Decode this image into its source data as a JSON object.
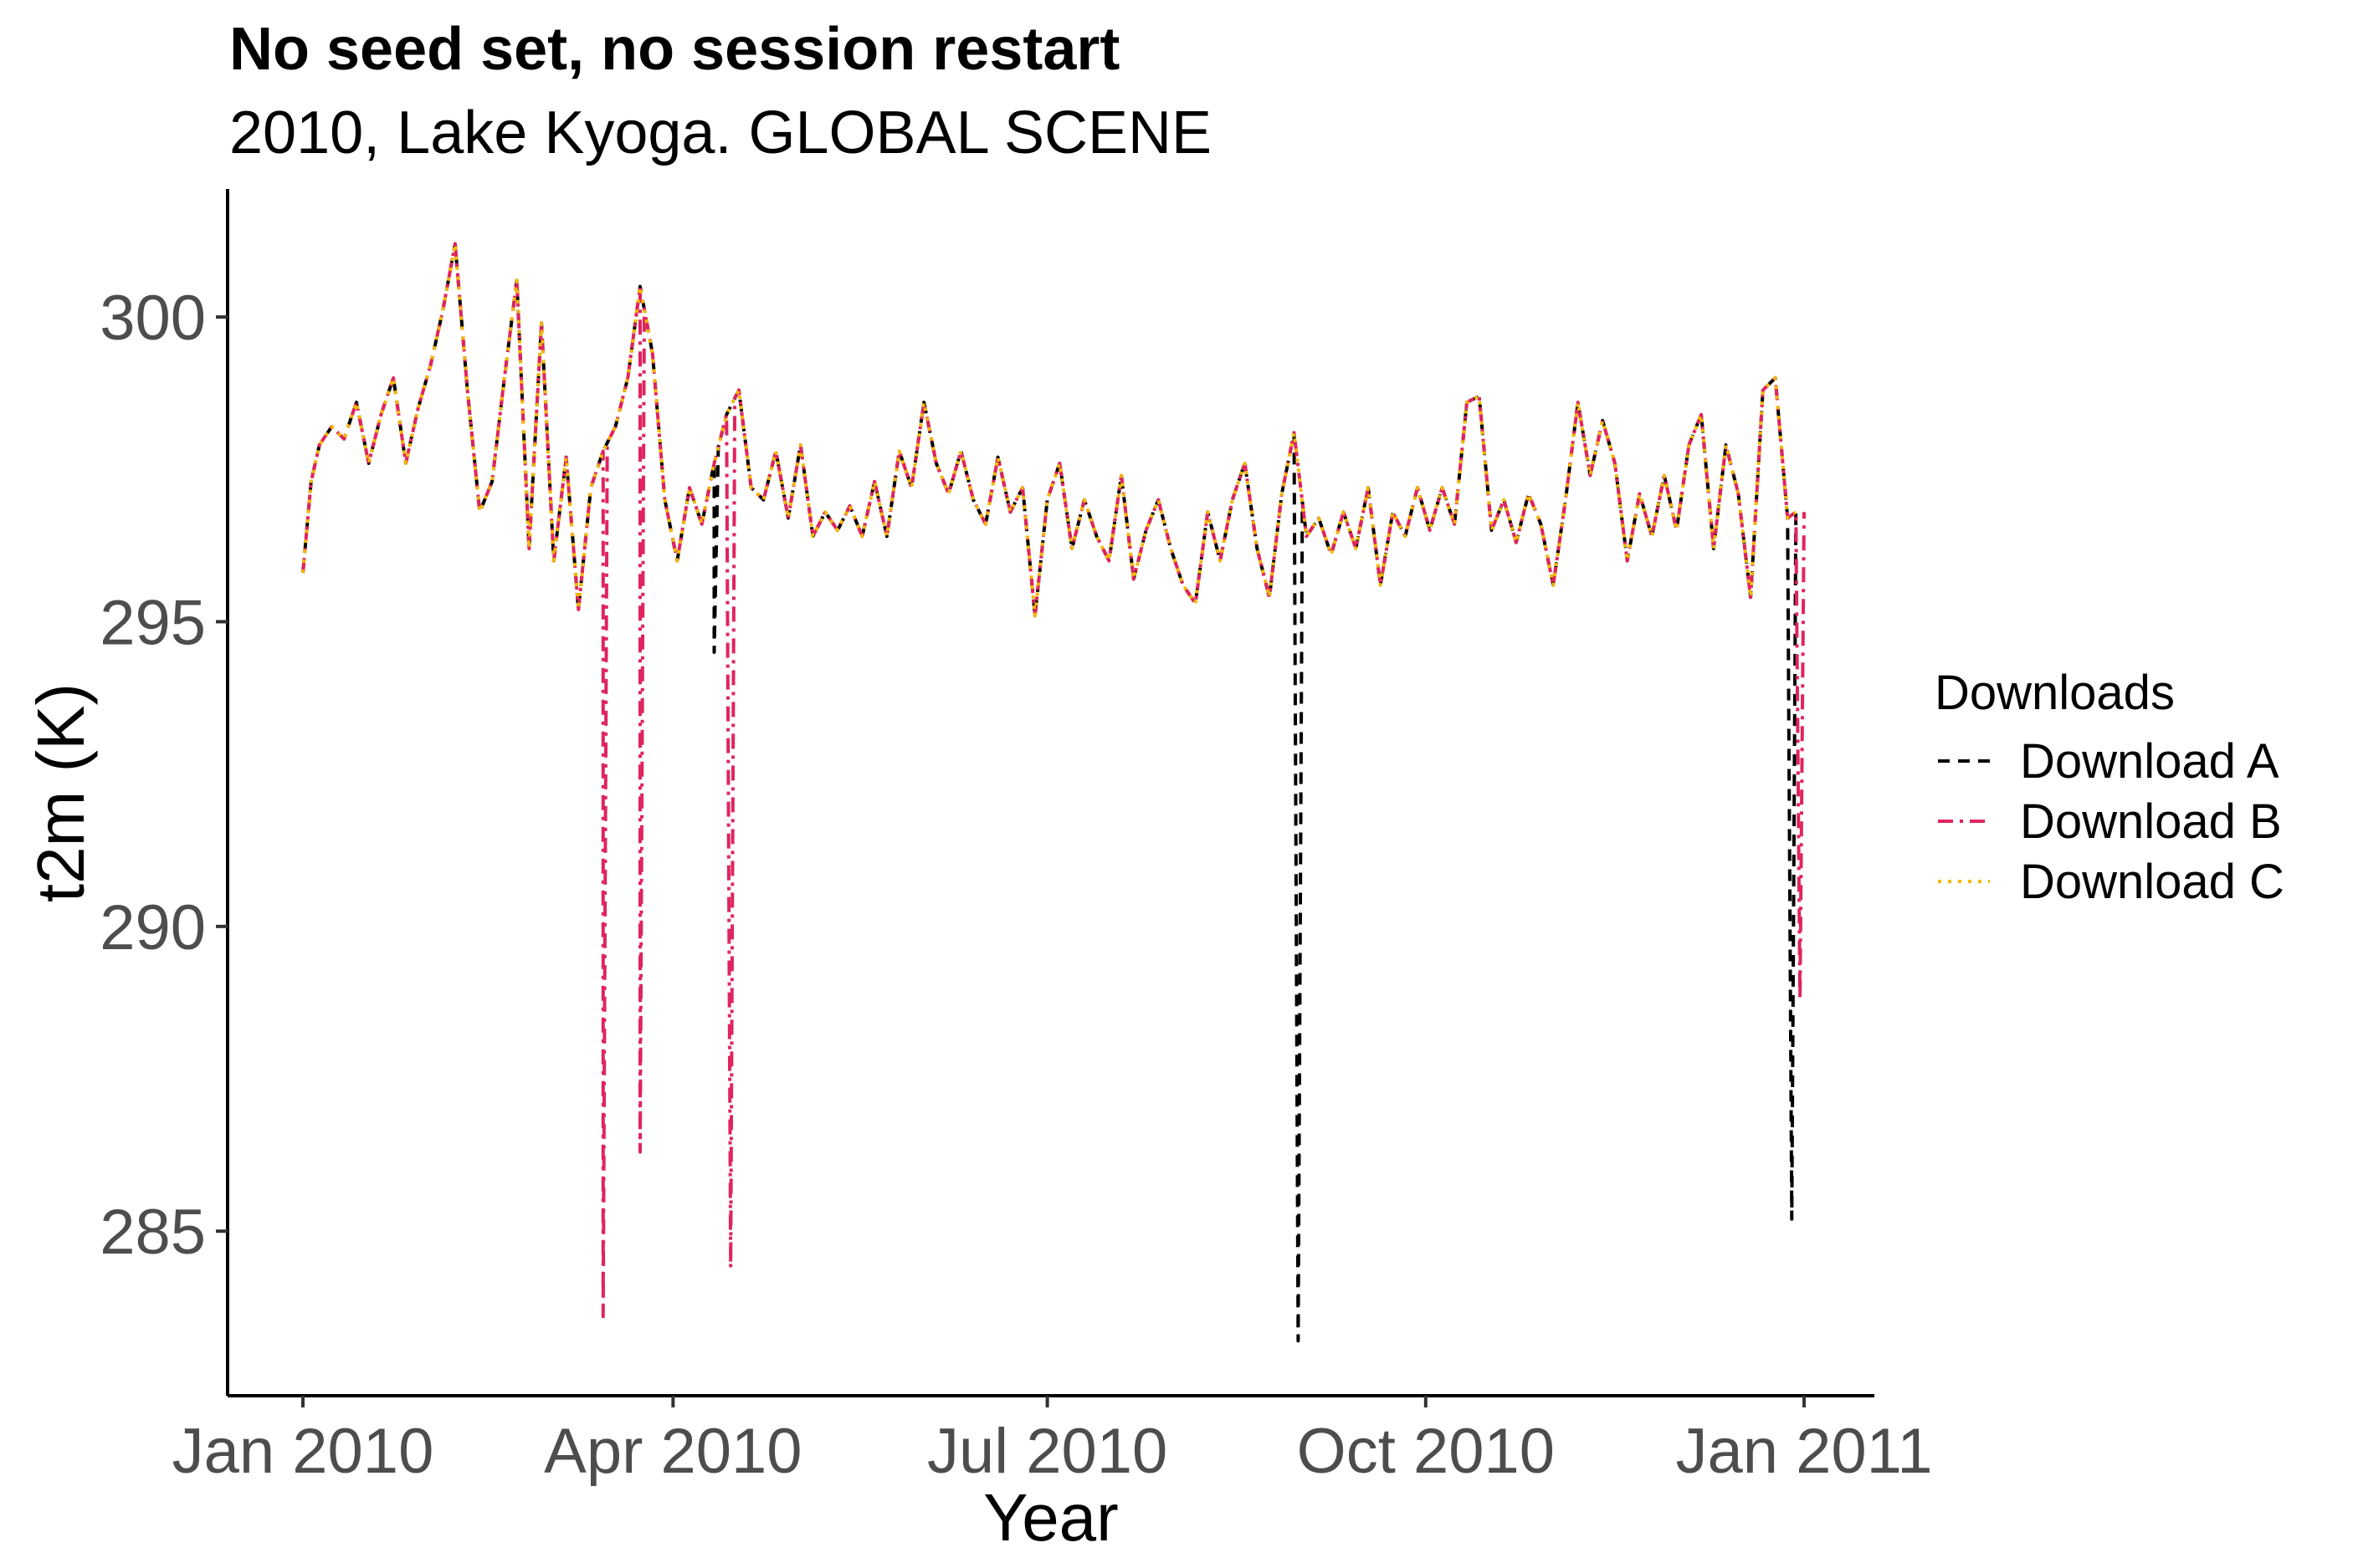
{
  "chart_data": {
    "type": "line",
    "title": "No seed set, no session restart",
    "subtitle": "2010, Lake Kyoga. GLOBAL SCENE",
    "xlabel": "Year",
    "ylabel": "t2m (K)",
    "xlim": [
      "2010-01-01",
      "2011-01-01"
    ],
    "ylim": [
      282.3,
      302.1
    ],
    "x_ticks": [
      "Jan 2010",
      "Apr 2010",
      "Jul 2010",
      "Oct 2010",
      "Jan 2011"
    ],
    "x_tick_dates": [
      "2010-01-01",
      "2010-04-01",
      "2010-07-01",
      "2010-10-01",
      "2011-01-01"
    ],
    "y_ticks": [
      285,
      290,
      295,
      300
    ],
    "grid": false,
    "legend": {
      "title": "Downloads",
      "placement": "right"
    },
    "base_series": {
      "x": [
        "2010-01-01",
        "2010-01-03",
        "2010-01-05",
        "2010-01-08",
        "2010-01-11",
        "2010-01-14",
        "2010-01-17",
        "2010-01-20",
        "2010-01-23",
        "2010-01-26",
        "2010-01-29",
        "2010-02-01",
        "2010-02-04",
        "2010-02-07",
        "2010-02-10",
        "2010-02-13",
        "2010-02-16",
        "2010-02-19",
        "2010-02-22",
        "2010-02-25",
        "2010-02-28",
        "2010-03-03",
        "2010-03-06",
        "2010-03-09",
        "2010-03-12",
        "2010-03-15",
        "2010-03-18",
        "2010-03-21",
        "2010-03-24",
        "2010-03-27",
        "2010-03-30",
        "2010-04-02",
        "2010-04-05",
        "2010-04-08",
        "2010-04-11",
        "2010-04-14",
        "2010-04-17",
        "2010-04-20",
        "2010-04-23",
        "2010-04-26",
        "2010-04-29",
        "2010-05-02",
        "2010-05-05",
        "2010-05-08",
        "2010-05-11",
        "2010-05-14",
        "2010-05-17",
        "2010-05-20",
        "2010-05-23",
        "2010-05-26",
        "2010-05-29",
        "2010-06-01",
        "2010-06-04",
        "2010-06-07",
        "2010-06-10",
        "2010-06-13",
        "2010-06-16",
        "2010-06-19",
        "2010-06-22",
        "2010-06-25",
        "2010-06-28",
        "2010-07-01",
        "2010-07-04",
        "2010-07-07",
        "2010-07-10",
        "2010-07-13",
        "2010-07-16",
        "2010-07-19",
        "2010-07-22",
        "2010-07-25",
        "2010-07-28",
        "2010-07-31",
        "2010-08-03",
        "2010-08-06",
        "2010-08-09",
        "2010-08-12",
        "2010-08-15",
        "2010-08-18",
        "2010-08-21",
        "2010-08-24",
        "2010-08-27",
        "2010-08-30",
        "2010-09-02",
        "2010-09-05",
        "2010-09-08",
        "2010-09-11",
        "2010-09-14",
        "2010-09-17",
        "2010-09-20",
        "2010-09-23",
        "2010-09-26",
        "2010-09-29",
        "2010-10-02",
        "2010-10-05",
        "2010-10-08",
        "2010-10-11",
        "2010-10-14",
        "2010-10-17",
        "2010-10-20",
        "2010-10-23",
        "2010-10-26",
        "2010-10-29",
        "2010-11-01",
        "2010-11-04",
        "2010-11-07",
        "2010-11-10",
        "2010-11-13",
        "2010-11-16",
        "2010-11-19",
        "2010-11-22",
        "2010-11-25",
        "2010-11-28",
        "2010-12-01",
        "2010-12-04",
        "2010-12-07",
        "2010-12-10",
        "2010-12-13",
        "2010-12-16",
        "2010-12-19",
        "2010-12-22",
        "2010-12-25",
        "2010-12-28",
        "2010-12-30"
      ],
      "y": [
        295.8,
        297.3,
        297.9,
        298.2,
        298.0,
        298.6,
        297.6,
        298.4,
        299.0,
        297.6,
        298.5,
        299.2,
        300.1,
        301.2,
        298.8,
        296.8,
        297.3,
        299.0,
        300.6,
        296.2,
        299.9,
        296.0,
        297.7,
        295.2,
        297.2,
        297.8,
        298.2,
        299.0,
        300.5,
        299.4,
        297.0,
        296.0,
        297.2,
        296.6,
        297.6,
        298.4,
        298.8,
        297.2,
        297.0,
        297.8,
        296.7,
        297.9,
        296.4,
        296.8,
        296.5,
        296.9,
        296.4,
        297.3,
        296.4,
        297.8,
        297.2,
        298.6,
        297.6,
        297.1,
        297.8,
        297.0,
        296.6,
        297.7,
        296.8,
        297.2,
        295.1,
        297.0,
        297.6,
        296.2,
        297.0,
        296.4,
        296.0,
        297.4,
        295.7,
        296.5,
        297.0,
        296.2,
        295.6,
        295.3,
        296.8,
        296.0,
        297.0,
        297.6,
        296.2,
        295.4,
        297.1,
        298.1,
        296.4,
        296.7,
        296.1,
        296.8,
        296.2,
        297.2,
        295.6,
        296.8,
        296.4,
        297.2,
        296.5,
        297.2,
        296.6,
        298.6,
        298.7,
        296.5,
        297.0,
        296.3,
        297.1,
        296.6,
        295.6,
        297.0,
        298.6,
        297.4,
        298.3,
        297.6,
        296.0,
        297.1,
        296.4,
        297.4,
        296.5,
        297.9,
        298.4,
        296.2,
        297.9,
        297.1,
        295.4,
        298.8,
        299.0,
        296.7,
        296.8
      ]
    },
    "series": [
      {
        "name": "Download A",
        "color": "#000000",
        "dash": "dashed",
        "spikes": [
          {
            "x": "2010-04-11",
            "y": 294.5
          },
          {
            "x": "2010-08-31",
            "y": 283.2
          },
          {
            "x": "2010-12-29",
            "y": 285.2
          }
        ]
      },
      {
        "name": "Download B",
        "color": "#e0245e",
        "dash": "dashdot",
        "spikes": [
          {
            "x": "2010-03-15",
            "y": 283.6
          },
          {
            "x": "2010-03-24",
            "y": 286.3
          },
          {
            "x": "2010-04-15",
            "y": 284.4
          },
          {
            "x": "2010-12-31",
            "y": 288.8
          }
        ]
      },
      {
        "name": "Download C",
        "color": "#f2b807",
        "dash": "dotted",
        "spikes": []
      }
    ]
  }
}
